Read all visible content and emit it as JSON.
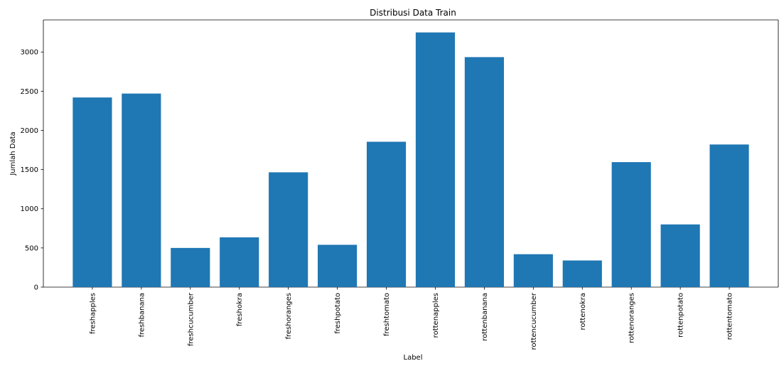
{
  "chart_data": {
    "type": "bar",
    "title": "Distribusi Data Train",
    "xlabel": "Label",
    "ylabel": "Jumlah Data",
    "categories": [
      "freshapples",
      "freshbanana",
      "freshcucumber",
      "freshokra",
      "freshoranges",
      "freshpotato",
      "freshtomato",
      "rottenapples",
      "rottenbanana",
      "rottencucumber",
      "rottenokra",
      "rottenoranges",
      "rottenpotato",
      "rottentomato"
    ],
    "values": [
      2420,
      2470,
      500,
      635,
      1465,
      540,
      1855,
      3250,
      2935,
      420,
      340,
      1595,
      800,
      1820
    ],
    "ylim": [
      0,
      3410
    ],
    "yticks": [
      "0",
      "500",
      "1000",
      "1500",
      "2000",
      "2500",
      "3000"
    ],
    "grid": false,
    "bar_color": "#1f77b4"
  }
}
